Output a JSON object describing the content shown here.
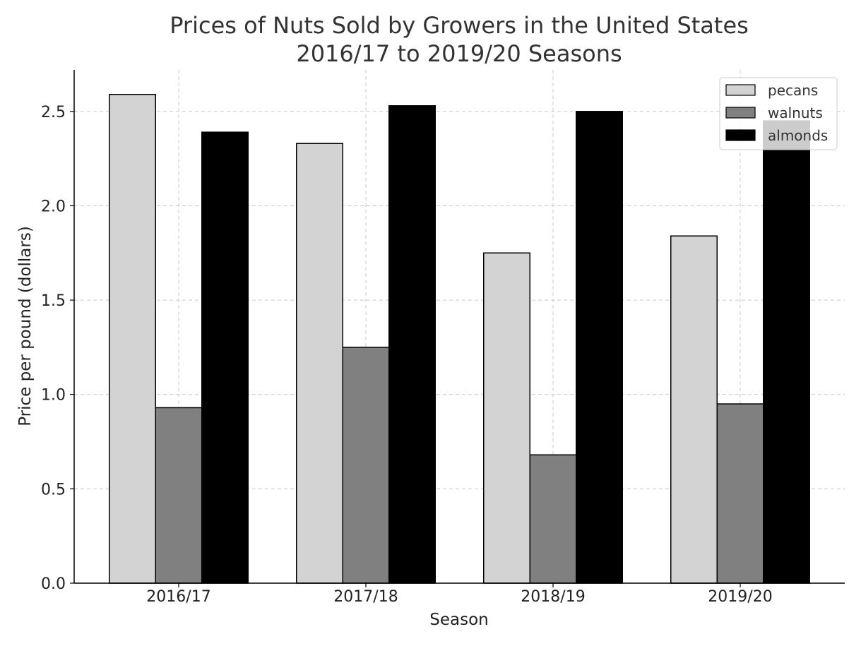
{
  "chart_data": {
    "type": "bar",
    "title": [
      "Prices of Nuts Sold by Growers in the United States",
      "2016/17 to 2019/20 Seasons"
    ],
    "xlabel": "Season",
    "ylabel": "Price per pound (dollars)",
    "categories": [
      "2016/17",
      "2017/18",
      "2018/19",
      "2019/20"
    ],
    "series": [
      {
        "name": "pecans",
        "color": "#d3d3d3",
        "values": [
          2.59,
          2.33,
          1.75,
          1.84
        ]
      },
      {
        "name": "walnuts",
        "color": "#808080",
        "values": [
          0.93,
          1.25,
          0.68,
          0.95
        ]
      },
      {
        "name": "almonds",
        "color": "#000000",
        "values": [
          2.39,
          2.53,
          2.5,
          2.45
        ]
      }
    ],
    "ylim": [
      0,
      2.72
    ],
    "yticks": [
      0.0,
      0.5,
      1.0,
      1.5,
      2.0,
      2.5
    ],
    "ytick_labels": [
      "0.0",
      "0.5",
      "1.0",
      "1.5",
      "2.0",
      "2.5"
    ],
    "grid": true,
    "legend_position": "top-right"
  }
}
